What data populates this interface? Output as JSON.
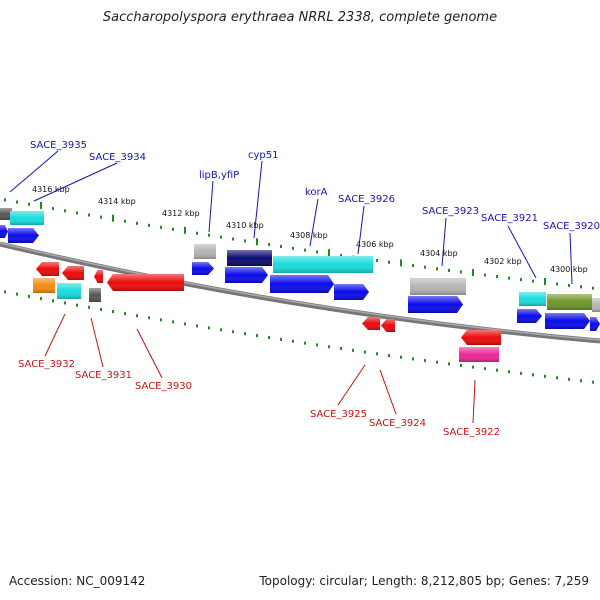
{
  "title": "Saccharopolyspora erythraea NRRL 2338, complete genome",
  "footer": {
    "accession": "Accession: NC_009142",
    "summary": "Topology: circular; Length: 8,212,805 bp; Genes: 7,259"
  },
  "scale_labels": [
    "4316 kbp",
    "4314 kbp",
    "4312 kbp",
    "4310 kbp",
    "4308 kbp",
    "4306 kbp",
    "4304 kbp",
    "4302 kbp",
    "4300 kbp"
  ],
  "top_labels": [
    "SACE_3935",
    "SACE_3934",
    "lipB,yfiP",
    "cyp51",
    "korA",
    "SACE_3926",
    "SACE_3923",
    "SACE_3921",
    "SACE_3920"
  ],
  "bottom_labels": [
    "SACE_3932",
    "SACE_3931",
    "SACE_3930",
    "SACE_3925",
    "SACE_3924",
    "SACE_3922"
  ],
  "colors": {
    "forward": "#0a0aeb",
    "reverse": "#eb0a0a",
    "cyan": "#19dcdc",
    "navy": "#0a0a6e",
    "gray": "#b4b4b4",
    "olive": "#6e9628",
    "orange": "#f58c14",
    "magenta": "#eb2896",
    "darkgray": "#555555",
    "tick": "#1e8c1e",
    "backbone": "#777777",
    "label_top": "#1414b4",
    "label_bottom": "#c81414"
  }
}
